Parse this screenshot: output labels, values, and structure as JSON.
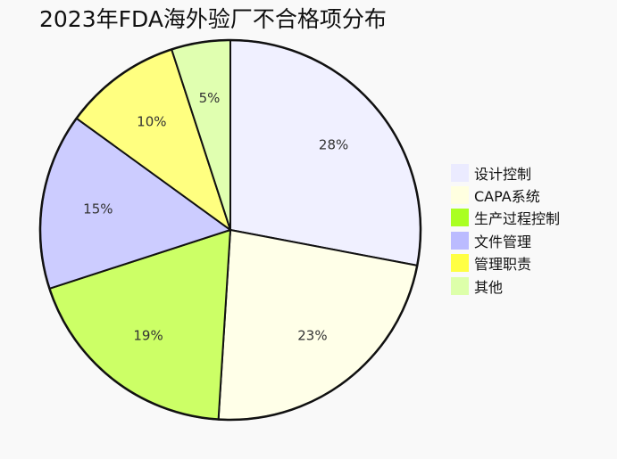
{
  "chart_data": {
    "type": "pie",
    "title": "2023年FDA海外验厂不合格项分布",
    "categories": [
      "设计控制",
      "CAPA系统",
      "生产过程控制",
      "文件管理",
      "管理职责",
      "其他"
    ],
    "values": [
      28,
      23,
      19,
      15,
      10,
      5
    ],
    "labels": [
      "28%",
      "23%",
      "19%",
      "15%",
      "10%",
      "5%"
    ],
    "slice_colors": [
      "#f0f0ff",
      "#ffffe8",
      "#ccff66",
      "#ccccff",
      "#ffff80",
      "#e0ffb0"
    ],
    "legend_colors": [
      "#ebebff",
      "#ffffe0",
      "#aaff22",
      "#bbbbff",
      "#ffff44",
      "#ddffaa"
    ],
    "legend_position": "right",
    "start_angle": "top",
    "direction": "clockwise"
  }
}
